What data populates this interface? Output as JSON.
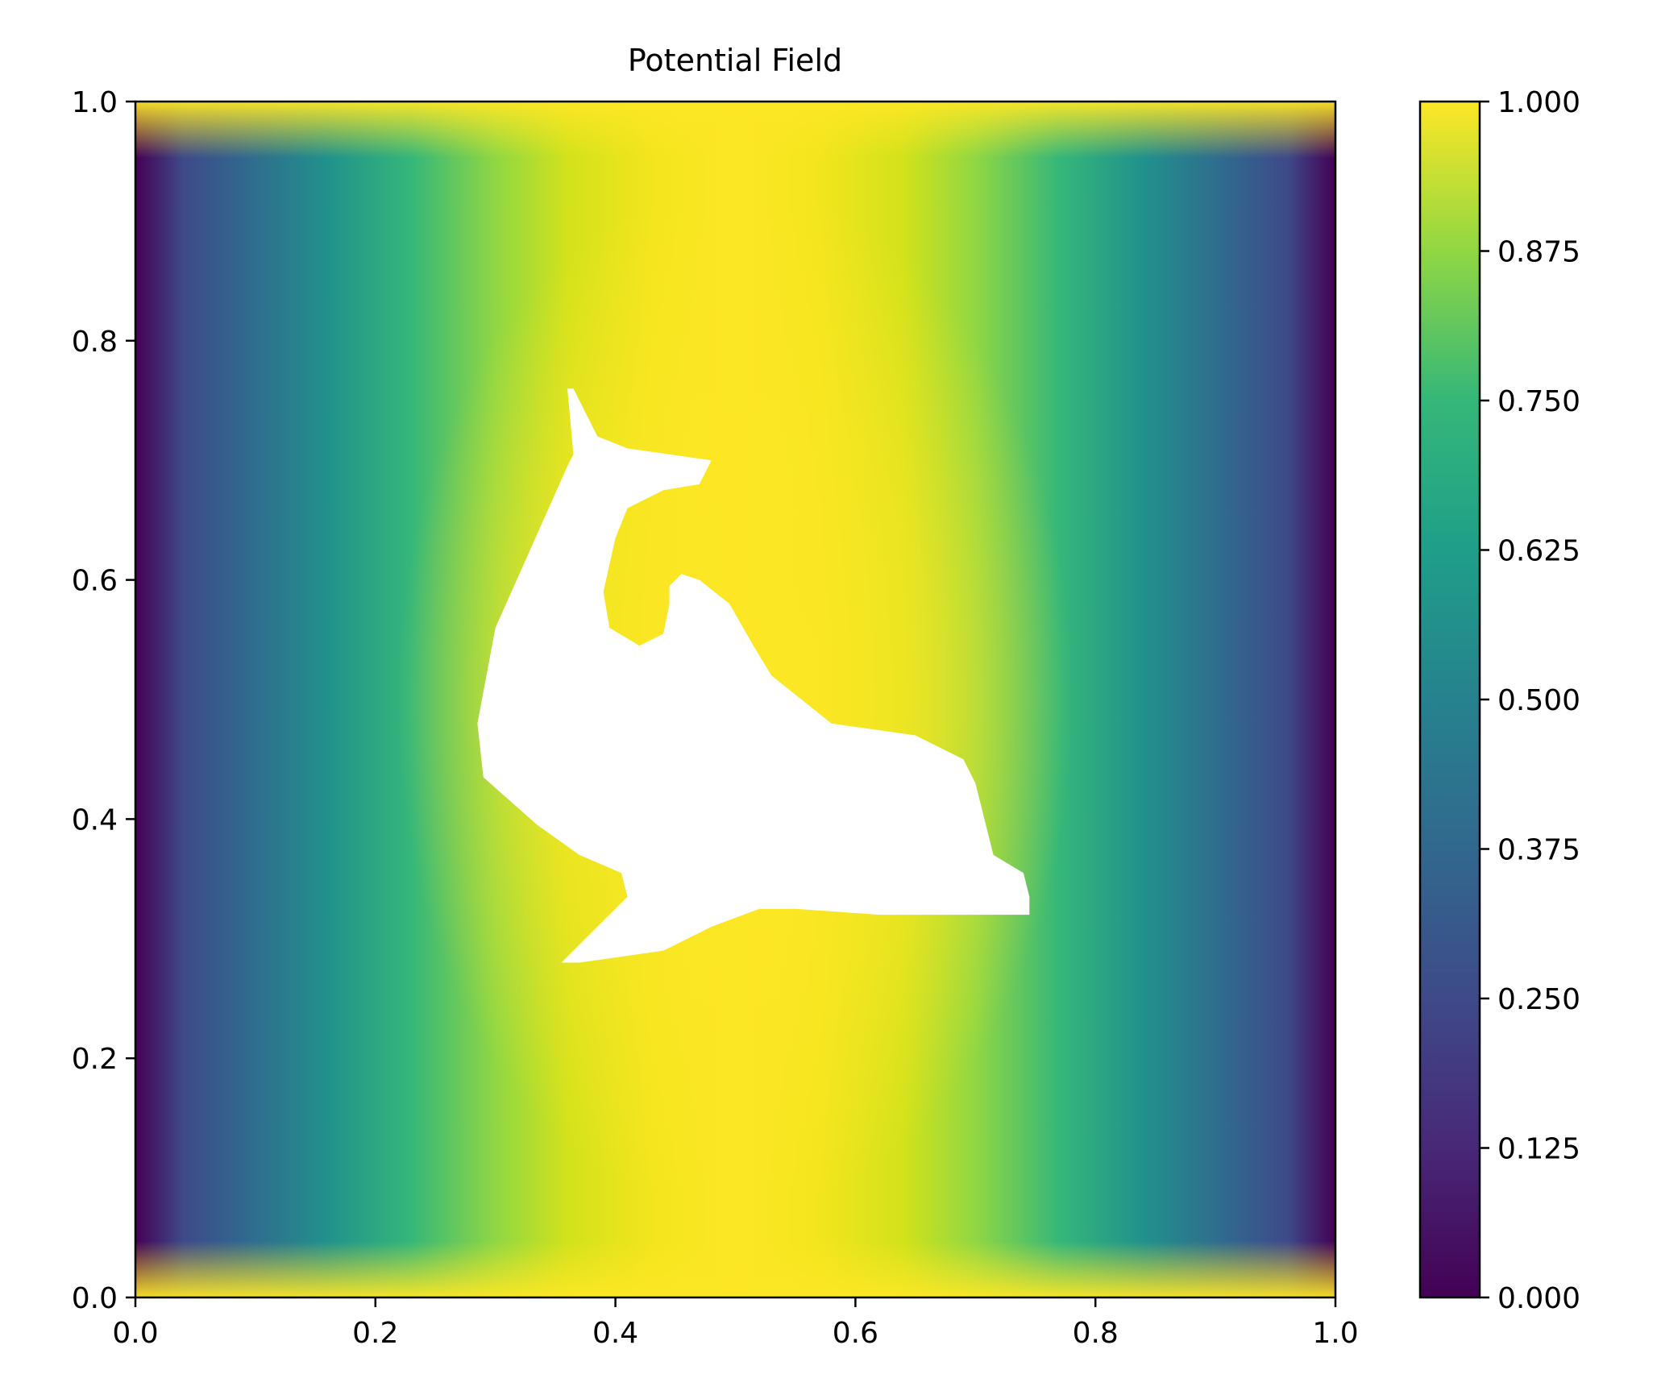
{
  "chart_data": {
    "type": "contourf",
    "title": "Potential Field",
    "xlabel": "",
    "ylabel": "",
    "xlim": [
      0.0,
      1.0
    ],
    "ylim": [
      0.0,
      1.0
    ],
    "x_ticks": [
      0.0,
      0.2,
      0.4,
      0.6,
      0.8,
      1.0
    ],
    "x_tick_labels": [
      "0.0",
      "0.2",
      "0.4",
      "0.6",
      "0.8",
      "1.0"
    ],
    "y_ticks": [
      0.0,
      0.2,
      0.4,
      0.6,
      0.8,
      1.0
    ],
    "y_tick_labels": [
      "0.0",
      "0.2",
      "0.4",
      "0.6",
      "0.8",
      "1.0"
    ],
    "colormap": "viridis",
    "colorbar": {
      "range": [
        0.0,
        1.0
      ],
      "ticks": [
        0.0,
        0.125,
        0.25,
        0.375,
        0.5,
        0.625,
        0.75,
        0.875,
        1.0
      ],
      "tick_labels": [
        "0.000",
        "0.125",
        "0.250",
        "0.375",
        "0.500",
        "0.625",
        "0.750",
        "0.875",
        "1.000"
      ],
      "levels": 40
    },
    "boundary_conditions": {
      "left_edge_x": 0.0,
      "left_value": 0.0,
      "right_edge_x": 1.0,
      "right_value": 0.0,
      "obstacle_value": 1.0,
      "top_bottom_value": 1.0
    },
    "obstacle": {
      "shape": "dolphin",
      "fill": "#ffffff",
      "outline": [
        [
          0.365,
          0.76
        ],
        [
          0.385,
          0.72
        ],
        [
          0.41,
          0.71
        ],
        [
          0.48,
          0.7
        ],
        [
          0.47,
          0.68
        ],
        [
          0.44,
          0.675
        ],
        [
          0.41,
          0.66
        ],
        [
          0.4,
          0.635
        ],
        [
          0.39,
          0.59
        ],
        [
          0.395,
          0.56
        ],
        [
          0.42,
          0.545
        ],
        [
          0.44,
          0.555
        ],
        [
          0.445,
          0.58
        ],
        [
          0.445,
          0.595
        ],
        [
          0.455,
          0.605
        ],
        [
          0.47,
          0.6
        ],
        [
          0.495,
          0.58
        ],
        [
          0.515,
          0.545
        ],
        [
          0.53,
          0.52
        ],
        [
          0.58,
          0.48
        ],
        [
          0.65,
          0.47
        ],
        [
          0.69,
          0.45
        ],
        [
          0.7,
          0.43
        ],
        [
          0.715,
          0.37
        ],
        [
          0.74,
          0.355
        ],
        [
          0.745,
          0.335
        ],
        [
          0.745,
          0.32
        ],
        [
          0.72,
          0.32
        ],
        [
          0.62,
          0.32
        ],
        [
          0.55,
          0.325
        ],
        [
          0.52,
          0.325
        ],
        [
          0.48,
          0.31
        ],
        [
          0.44,
          0.29
        ],
        [
          0.37,
          0.28
        ],
        [
          0.355,
          0.28
        ],
        [
          0.38,
          0.305
        ],
        [
          0.41,
          0.335
        ],
        [
          0.405,
          0.355
        ],
        [
          0.37,
          0.37
        ],
        [
          0.335,
          0.395
        ],
        [
          0.29,
          0.435
        ],
        [
          0.285,
          0.48
        ],
        [
          0.3,
          0.56
        ],
        [
          0.36,
          0.695
        ],
        [
          0.365,
          0.705
        ],
        [
          0.36,
          0.76
        ]
      ]
    }
  }
}
